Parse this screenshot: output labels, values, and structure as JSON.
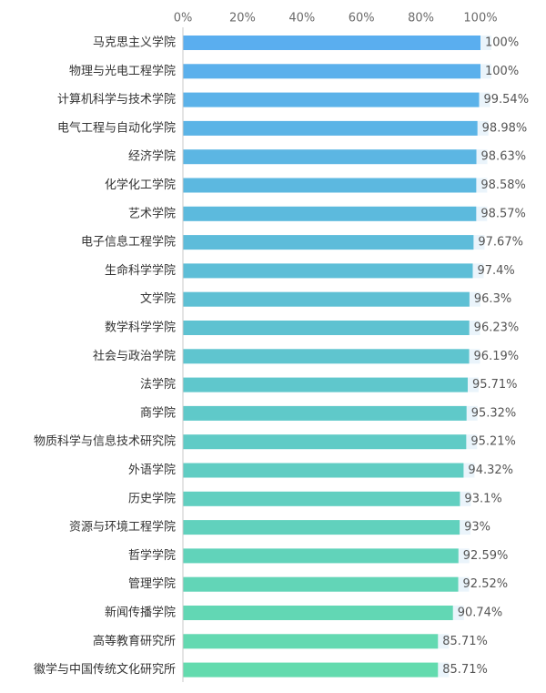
{
  "chart_data": {
    "type": "bar",
    "orientation": "horizontal",
    "title": "",
    "xlabel": "",
    "ylabel": "",
    "xlim": [
      0,
      100
    ],
    "x_ticks": [
      "0%",
      "20%",
      "40%",
      "60%",
      "80%",
      "100%"
    ],
    "grid": false,
    "legend": "none",
    "categories": [
      "马克思主义学院",
      "物理与光电工程学院",
      "计算机科学与技术学院",
      "电气工程与自动化学院",
      "经济学院",
      "化学化工学院",
      "艺术学院",
      "电子信息工程学院",
      "生命科学学院",
      "文学院",
      "数学科学学院",
      "社会与政治学院",
      "法学院",
      "商学院",
      "物质科学与信息技术研究院",
      "外语学院",
      "历史学院",
      "资源与环境工程学院",
      "哲学学院",
      "管理学院",
      "新闻传播学院",
      "高等教育研究所",
      "徽学与中国传统文化研究所"
    ],
    "values": [
      100,
      100,
      99.54,
      98.98,
      98.63,
      98.58,
      98.57,
      97.67,
      97.4,
      96.3,
      96.23,
      96.19,
      95.71,
      95.32,
      95.21,
      94.32,
      93.1,
      93,
      92.59,
      92.52,
      90.74,
      85.71,
      85.71
    ],
    "value_labels": [
      "100%",
      "100%",
      "99.54%",
      "98.98%",
      "98.63%",
      "98.58%",
      "98.57%",
      "97.67%",
      "97.4%",
      "96.3%",
      "96.23%",
      "96.19%",
      "95.71%",
      "95.32%",
      "95.21%",
      "94.32%",
      "93.1%",
      "93%",
      "92.59%",
      "92.52%",
      "90.74%",
      "85.71%",
      "85.71%"
    ],
    "colors": {
      "gradient_start": "#5aaeef",
      "gradient_end": "#63dbae",
      "track": "#eaf4fb",
      "axis": "#c8c8c8"
    }
  }
}
